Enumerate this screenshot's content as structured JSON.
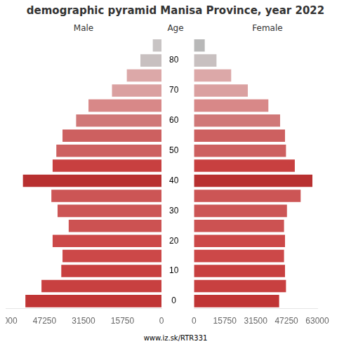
{
  "chart_data": {
    "type": "bar",
    "orientation": "horizontal",
    "title": "demographic pyramid Manisa Province, year 2022",
    "ylabel": "Age",
    "annotations": [
      "www.iz.sk/RTR331"
    ],
    "categories": [
      "0",
      null,
      "10",
      null,
      "20",
      null,
      "30",
      null,
      "40",
      null,
      "50",
      null,
      "60",
      null,
      "70",
      null,
      "80",
      null
    ],
    "series": [
      {
        "name": "Male",
        "colors": [
          "#c03535",
          "#c84040",
          "#c84040",
          "#cc4848",
          "#cc4848",
          "#cc5252",
          "#cc5555",
          "#cc5555",
          "#b83030",
          "#c84040",
          "#cd6060",
          "#cd6060",
          "#d07878",
          "#d88888",
          "#daa0a0",
          "#dca8a8",
          "#c8c0c0",
          "#c8c4c4"
        ],
        "values": [
          55000,
          48500,
          40500,
          40000,
          44000,
          37500,
          42000,
          44500,
          56000,
          44000,
          42500,
          40000,
          34500,
          29500,
          20000,
          14000,
          8500,
          3500
        ]
      },
      {
        "name": "Female",
        "colors": [
          "#c03535",
          "#c84040",
          "#c84040",
          "#cc4848",
          "#cc4848",
          "#cc5252",
          "#cc5555",
          "#cc5555",
          "#b83030",
          "#c84040",
          "#cd6060",
          "#cd6060",
          "#d07878",
          "#d88888",
          "#daa0a0",
          "#dca8a8",
          "#c8c0c0",
          "#b8b8b8"
        ],
        "values": [
          43500,
          47000,
          46500,
          46000,
          46500,
          46000,
          47500,
          54500,
          60500,
          51500,
          47000,
          46500,
          44000,
          38000,
          27500,
          19000,
          11500,
          5500
        ]
      }
    ],
    "xlim": [
      0,
      63000
    ],
    "xticks": [
      0,
      15750,
      31500,
      47250,
      63000
    ],
    "grid": false
  }
}
